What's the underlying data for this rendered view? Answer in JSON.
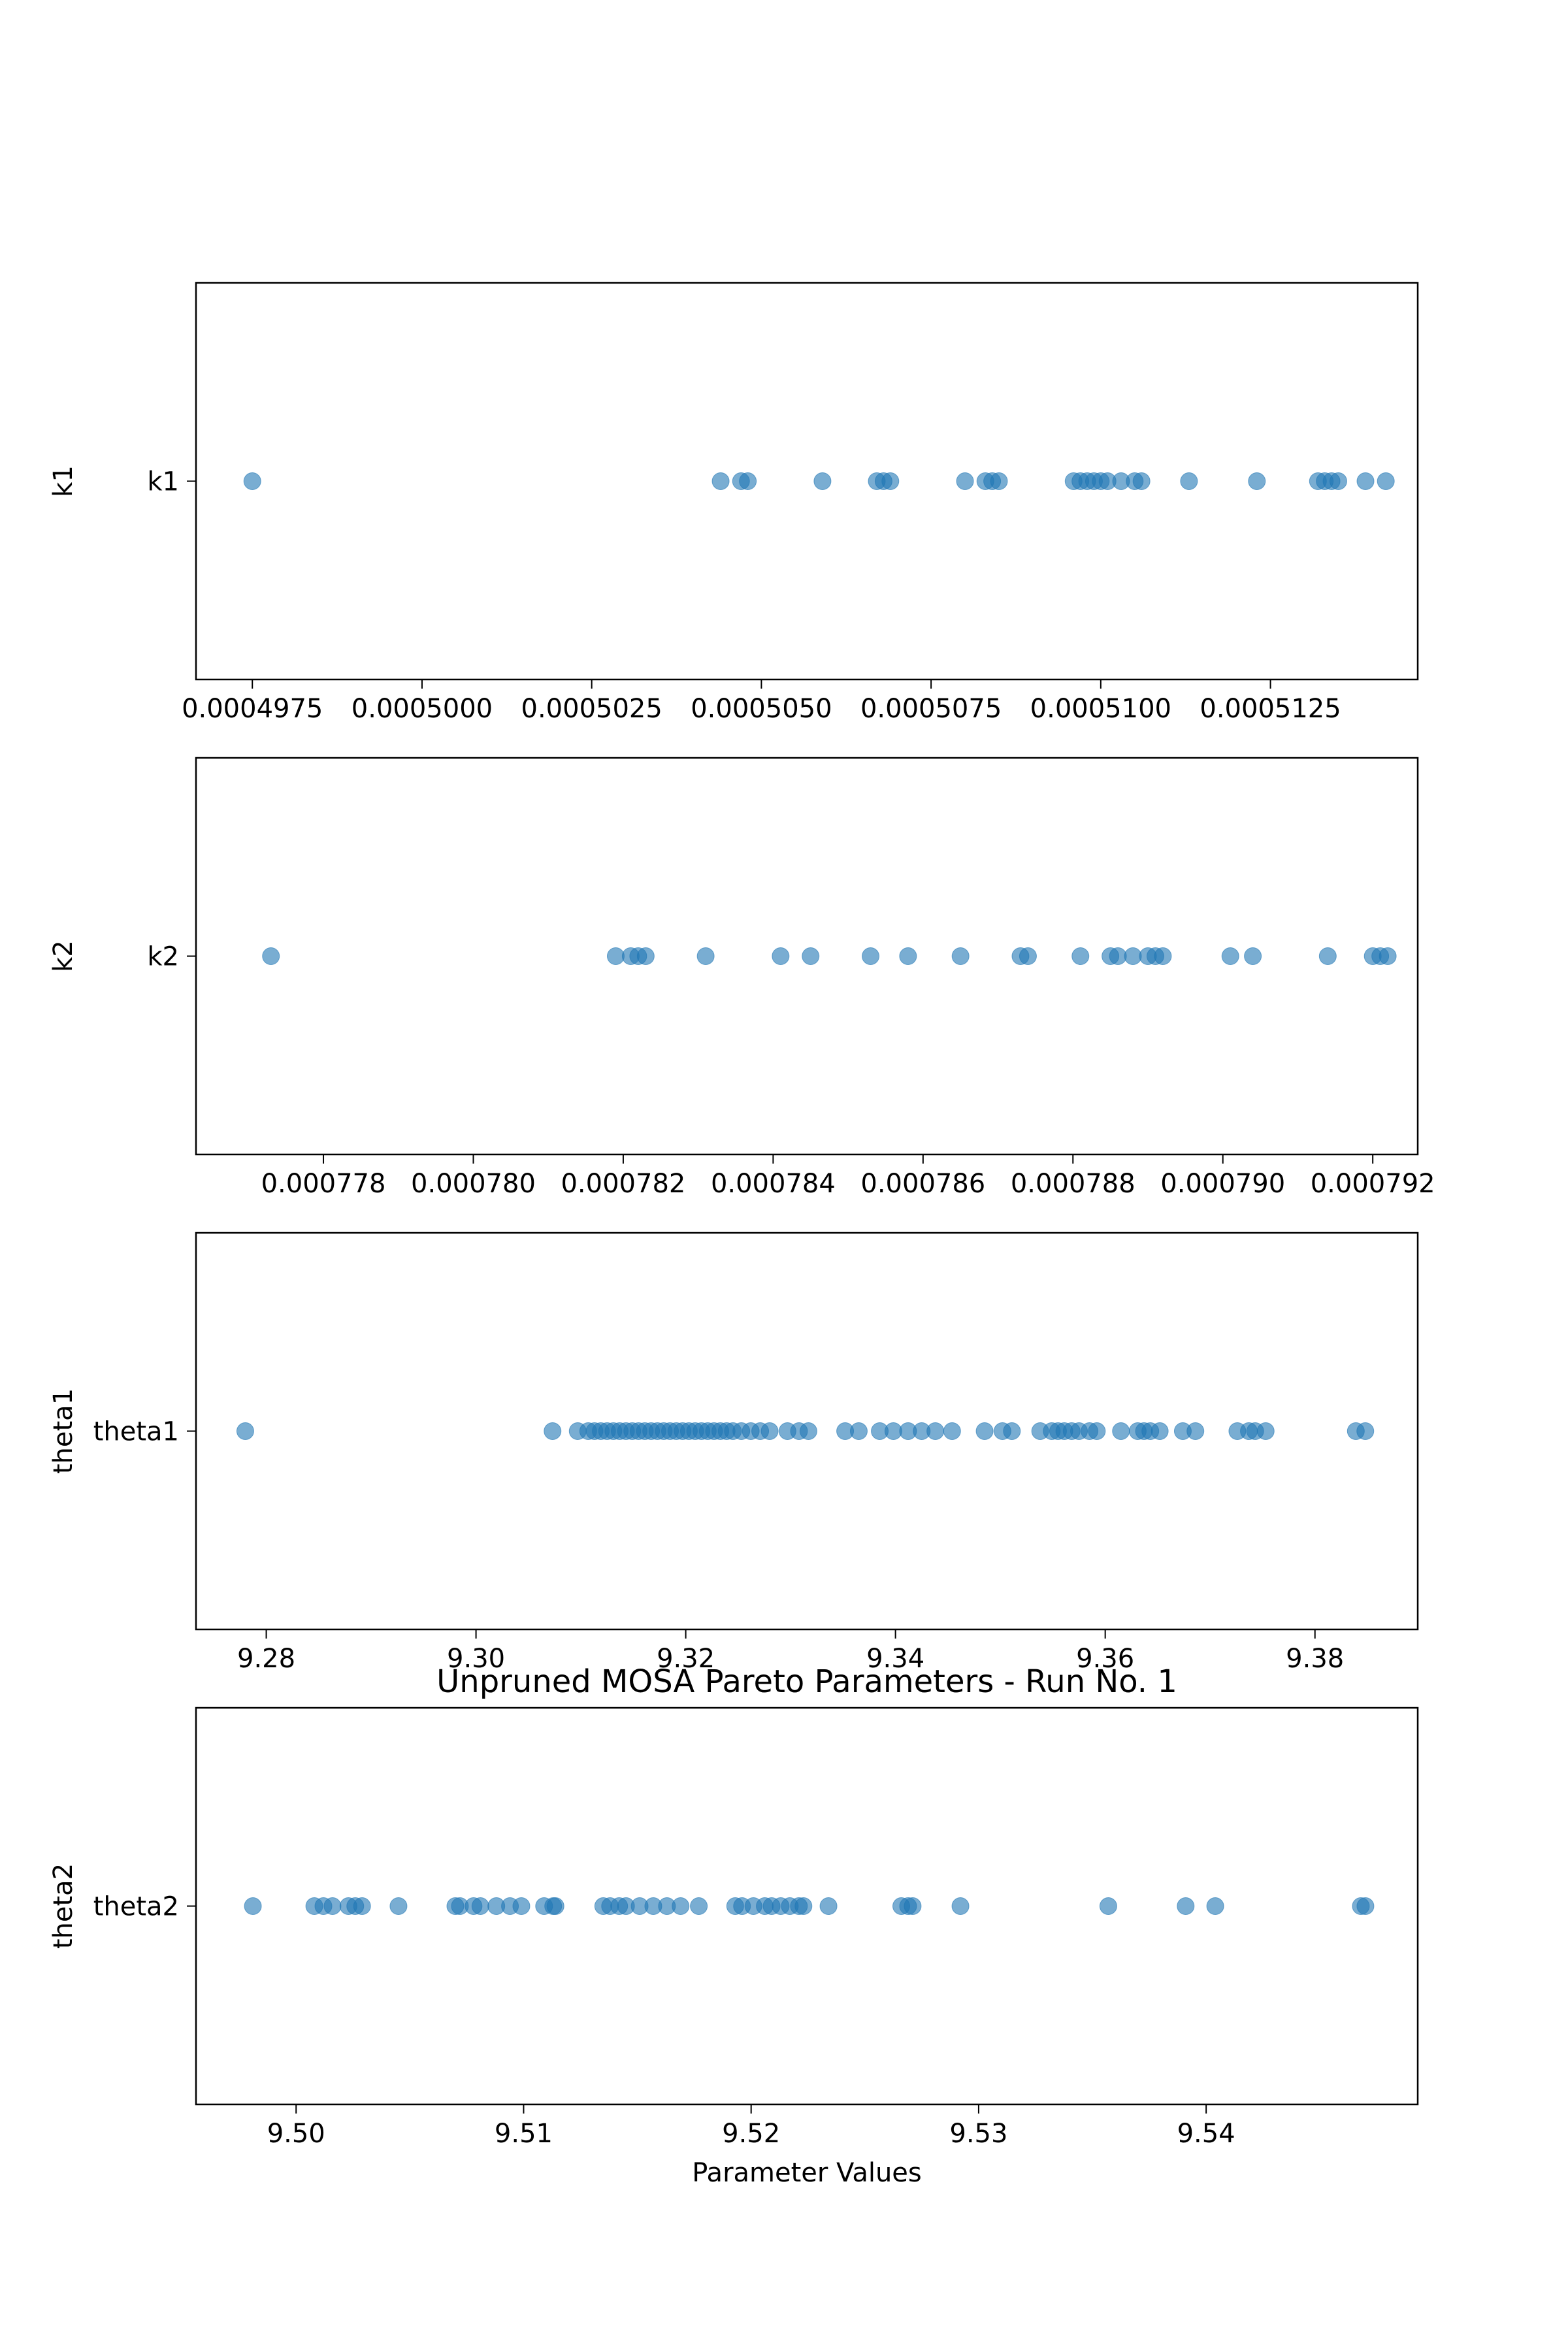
{
  "chart_data": [
    {
      "type": "scatter",
      "ylabel": "k1",
      "category": "k1",
      "xlim": [
        0.00049667,
        0.00051467
      ],
      "xticks": [
        0.0004975,
        0.0005,
        0.0005025,
        0.000505,
        0.0005075,
        0.00051,
        0.0005125
      ],
      "xtick_labels": [
        "0.0004975",
        "0.0005000",
        "0.0005025",
        "0.0005050",
        "0.0005075",
        "0.0005100",
        "0.0005125"
      ],
      "x": [
        0.0004975,
        0.0005044,
        0.0005047,
        0.0005048,
        0.0005059,
        0.0005067,
        0.0005068,
        0.0005069,
        0.000508,
        0.0005083,
        0.0005084,
        0.0005085,
        0.0005096,
        0.0005097,
        0.0005098,
        0.0005099,
        0.00051,
        0.0005101,
        0.0005103,
        0.0005105,
        0.0005106,
        0.0005113,
        0.0005123,
        0.0005132,
        0.0005133,
        0.0005134,
        0.0005135,
        0.0005139,
        0.0005142
      ]
    },
    {
      "type": "scatter",
      "ylabel": "k2",
      "category": "k2",
      "xlim": [
        0.0007763,
        0.0007926
      ],
      "xticks": [
        0.000778,
        0.00078,
        0.000782,
        0.000784,
        0.000786,
        0.000788,
        0.00079,
        0.000792
      ],
      "xtick_labels": [
        "0.000778",
        "0.000780",
        "0.000782",
        "0.000784",
        "0.000786",
        "0.000788",
        "0.000790",
        "0.000792"
      ],
      "x": [
        0.0007773,
        0.0007819,
        0.0007821,
        0.0007822,
        0.0007823,
        0.0007831,
        0.0007841,
        0.0007845,
        0.0007853,
        0.0007858,
        0.0007865,
        0.0007873,
        0.0007874,
        0.0007881,
        0.0007885,
        0.0007886,
        0.0007888,
        0.000789,
        0.0007891,
        0.0007892,
        0.0007901,
        0.0007904,
        0.0007914,
        0.000792,
        0.0007921,
        0.0007922
      ]
    },
    {
      "type": "scatter",
      "ylabel": "theta1",
      "category": "theta1",
      "xlim": [
        9.2733,
        9.3898
      ],
      "xticks": [
        9.28,
        9.3,
        9.32,
        9.34,
        9.36,
        9.38
      ],
      "xtick_labels": [
        "9.28",
        "9.30",
        "9.32",
        "9.34",
        "9.36",
        "9.38"
      ],
      "x": [
        9.278,
        9.3073,
        9.3097,
        9.3107,
        9.3113,
        9.3119,
        9.3125,
        9.3131,
        9.3137,
        9.3143,
        9.3149,
        9.3155,
        9.3161,
        9.3167,
        9.3173,
        9.3179,
        9.3185,
        9.3191,
        9.3197,
        9.3203,
        9.3209,
        9.3215,
        9.3221,
        9.3227,
        9.3233,
        9.3239,
        9.3245,
        9.3253,
        9.3262,
        9.3271,
        9.328,
        9.3297,
        9.3308,
        9.3317,
        9.3352,
        9.3365,
        9.3385,
        9.3398,
        9.3412,
        9.3425,
        9.3438,
        9.3454,
        9.3485,
        9.3502,
        9.3511,
        9.3538,
        9.3549,
        9.3555,
        9.3561,
        9.3568,
        9.3575,
        9.3585,
        9.3592,
        9.3615,
        9.3631,
        9.3637,
        9.3643,
        9.3652,
        9.3674,
        9.3686,
        9.3726,
        9.3737,
        9.3743,
        9.3753,
        9.3839,
        9.3848
      ]
    },
    {
      "type": "scatter",
      "ylabel": "theta2",
      "category": "theta2",
      "xlabel": "Parameter Values",
      "title": "Unpruned MOSA Pareto Parameters - Run No. 1",
      "xlim": [
        9.4956,
        9.5493
      ],
      "xticks": [
        9.5,
        9.51,
        9.52,
        9.53,
        9.54
      ],
      "xtick_labels": [
        "9.50",
        "9.51",
        "9.52",
        "9.53",
        "9.54"
      ],
      "x": [
        9.4981,
        9.5008,
        9.5012,
        9.5016,
        9.5023,
        9.5026,
        9.5029,
        9.5045,
        9.507,
        9.5072,
        9.5078,
        9.5081,
        9.5088,
        9.5094,
        9.5099,
        9.5109,
        9.5113,
        9.5114,
        9.5135,
        9.5138,
        9.5142,
        9.5145,
        9.5151,
        9.5157,
        9.5163,
        9.5169,
        9.5177,
        9.5193,
        9.5196,
        9.5201,
        9.5206,
        9.5209,
        9.5213,
        9.5217,
        9.5221,
        9.5223,
        9.5234,
        9.5266,
        9.5269,
        9.5271,
        9.5292,
        9.5357,
        9.5391,
        9.5404,
        9.5468,
        9.547
      ]
    }
  ]
}
